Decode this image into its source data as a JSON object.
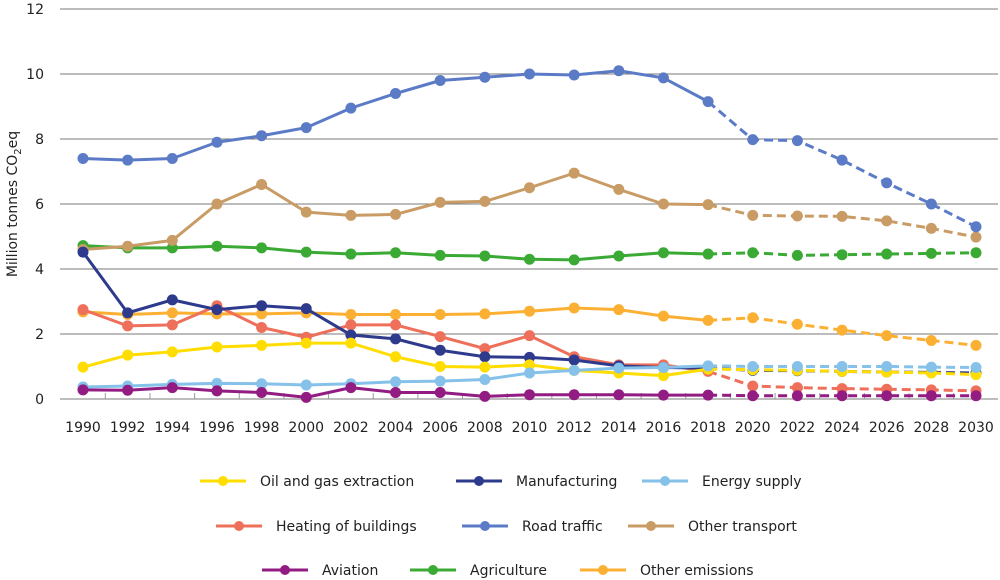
{
  "chart_data": {
    "type": "line",
    "title": "",
    "xlabel": "",
    "ylabel": "Million tonnes CO2eq",
    "ylabel_parts": {
      "pre": "Million tonnes CO",
      "sub": "2",
      "post": "eq"
    },
    "ylim": [
      0,
      12
    ],
    "yticks": [
      0,
      2,
      4,
      6,
      8,
      10,
      12
    ],
    "x": [
      1990,
      1992,
      1994,
      1996,
      1998,
      2000,
      2002,
      2004,
      2006,
      2008,
      2010,
      2012,
      2014,
      2016,
      2018,
      2020,
      2022,
      2024,
      2026,
      2028,
      2030
    ],
    "projection_from": 2018,
    "grid": true,
    "legend_position": "bottom",
    "series": [
      {
        "name": "Oil and gas extraction",
        "color": "#FFDD00",
        "values": [
          0.98,
          1.35,
          1.45,
          1.6,
          1.65,
          1.72,
          1.72,
          1.3,
          1.0,
          0.98,
          1.05,
          0.88,
          0.8,
          0.72,
          0.92,
          0.9,
          0.88,
          0.85,
          0.83,
          0.8,
          0.75
        ]
      },
      {
        "name": "Manufacturing",
        "color": "#2E3A8C",
        "values": [
          4.52,
          2.65,
          3.05,
          2.75,
          2.87,
          2.78,
          1.97,
          1.85,
          1.5,
          1.3,
          1.28,
          1.2,
          1.02,
          0.97,
          0.95,
          0.88,
          0.87,
          0.85,
          0.83,
          0.82,
          0.8
        ]
      },
      {
        "name": "Energy supply",
        "color": "#85C1E9",
        "values": [
          0.37,
          0.4,
          0.45,
          0.48,
          0.47,
          0.43,
          0.47,
          0.53,
          0.55,
          0.6,
          0.8,
          0.88,
          0.95,
          0.97,
          1.02,
          1.0,
          1.0,
          1.0,
          1.0,
          0.98,
          0.97
        ]
      },
      {
        "name": "Heating of buildings",
        "color": "#EE6F5A",
        "values": [
          2.75,
          2.25,
          2.28,
          2.87,
          2.2,
          1.9,
          2.28,
          2.28,
          1.92,
          1.55,
          1.95,
          1.3,
          1.05,
          1.05,
          0.85,
          0.4,
          0.35,
          0.32,
          0.3,
          0.28,
          0.25
        ]
      },
      {
        "name": "Road traffic",
        "color": "#5B7BC7",
        "values": [
          7.4,
          7.35,
          7.4,
          7.9,
          8.1,
          8.35,
          8.95,
          9.4,
          9.8,
          9.9,
          10.0,
          9.97,
          10.1,
          9.88,
          9.15,
          7.98,
          7.95,
          7.35,
          6.65,
          6.0,
          5.3
        ]
      },
      {
        "name": "Other transport",
        "color": "#C99C66",
        "values": [
          4.6,
          4.7,
          4.88,
          6.0,
          6.6,
          5.75,
          5.65,
          5.68,
          6.05,
          6.08,
          6.5,
          6.95,
          6.45,
          6.0,
          5.98,
          5.65,
          5.63,
          5.62,
          5.48,
          5.25,
          4.98
        ]
      },
      {
        "name": "Aviation",
        "color": "#921C82",
        "values": [
          0.28,
          0.27,
          0.35,
          0.25,
          0.2,
          0.05,
          0.35,
          0.2,
          0.2,
          0.08,
          0.13,
          0.13,
          0.13,
          0.12,
          0.12,
          0.1,
          0.1,
          0.1,
          0.1,
          0.1,
          0.1
        ]
      },
      {
        "name": "Agriculture",
        "color": "#3AAA35",
        "values": [
          4.72,
          4.65,
          4.65,
          4.7,
          4.65,
          4.52,
          4.46,
          4.5,
          4.42,
          4.4,
          4.3,
          4.28,
          4.4,
          4.5,
          4.46,
          4.5,
          4.42,
          4.44,
          4.46,
          4.48,
          4.5
        ]
      },
      {
        "name": "Other emissions",
        "color": "#FBB034",
        "values": [
          2.68,
          2.6,
          2.65,
          2.62,
          2.62,
          2.65,
          2.6,
          2.6,
          2.6,
          2.62,
          2.7,
          2.8,
          2.75,
          2.55,
          2.42,
          2.5,
          2.3,
          2.12,
          1.95,
          1.8,
          1.65
        ]
      }
    ],
    "draw_order": [
      8,
      7,
      5,
      4,
      3,
      1,
      0,
      2,
      6
    ]
  }
}
